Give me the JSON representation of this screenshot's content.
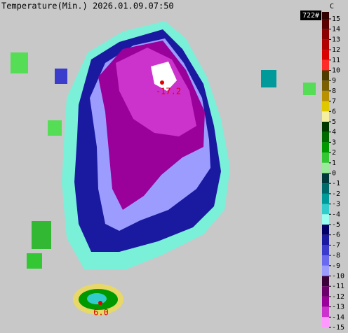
{
  "title": "Temperature(Min.) 2026.01.09.07:50",
  "station_count": "722#",
  "unit": "C",
  "colorbar": {
    "ticks": [
      15,
      14,
      13,
      12,
      11,
      10,
      9,
      8,
      7,
      6,
      5,
      4,
      3,
      2,
      1,
      0,
      -1,
      -2,
      -3,
      -4,
      -5,
      -6,
      -7,
      -8,
      -9,
      -10,
      -11,
      -12,
      -13,
      -14,
      -15
    ],
    "colors": [
      "#5a0000",
      "#8b0000",
      "#b00000",
      "#d80000",
      "#ff2a2a",
      "#4d3b00",
      "#7a6000",
      "#b89000",
      "#e0c800",
      "#f4f0a0",
      "#003a00",
      "#006a00",
      "#009a00",
      "#33c833",
      "#99ea99",
      "#003a3a",
      "#006a6a",
      "#009a9a",
      "#33cccc",
      "#99fff0",
      "#000066",
      "#1a1aa0",
      "#3c3ccc",
      "#6a6aee",
      "#9c9cff",
      "#3a003a",
      "#6a006a",
      "#9a009a",
      "#cc33cc",
      "#ff99ff"
    ]
  },
  "markers": [
    {
      "label": -17.2
    },
    {
      "label": {
        "value": 6,
        "label": "6.0"
      }
    }
  ]
}
